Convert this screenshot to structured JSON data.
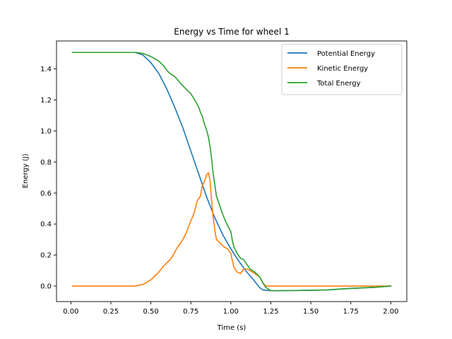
{
  "chart_data": {
    "type": "line",
    "title": "Energy vs Time for wheel 1",
    "xlabel": "Time (s)",
    "ylabel": "Energy (J)",
    "xlim": [
      -0.09,
      2.1
    ],
    "ylim": [
      -0.1,
      1.58
    ],
    "xticks": [
      0.0,
      0.25,
      0.5,
      0.75,
      1.0,
      1.25,
      1.5,
      1.75,
      2.0
    ],
    "xtick_labels": [
      "0.00",
      "0.25",
      "0.50",
      "0.75",
      "1.00",
      "1.25",
      "1.50",
      "1.75",
      "2.00"
    ],
    "yticks": [
      0.0,
      0.2,
      0.4,
      0.6,
      0.8,
      1.0,
      1.2,
      1.4
    ],
    "ytick_labels": [
      "0.0",
      "0.2",
      "0.4",
      "0.6",
      "0.8",
      "1.0",
      "1.2",
      "1.4"
    ],
    "legend_position": "top-right",
    "grid": false,
    "series": [
      {
        "name": "Potential Energy",
        "color": "#1f77b4",
        "points": [
          [
            0.01,
            1.506
          ],
          [
            0.4,
            1.506
          ],
          [
            0.45,
            1.49
          ],
          [
            0.5,
            1.44
          ],
          [
            0.55,
            1.37
          ],
          [
            0.6,
            1.27
          ],
          [
            0.65,
            1.15
          ],
          [
            0.7,
            1.02
          ],
          [
            0.75,
            0.87
          ],
          [
            0.8,
            0.72
          ],
          [
            0.85,
            0.57
          ],
          [
            0.9,
            0.44
          ],
          [
            0.95,
            0.33
          ],
          [
            1.0,
            0.24
          ],
          [
            1.05,
            0.16
          ],
          [
            1.1,
            0.09
          ],
          [
            1.15,
            0.03
          ],
          [
            1.18,
            -0.01
          ],
          [
            1.2,
            -0.025
          ],
          [
            1.25,
            -0.03
          ],
          [
            1.3,
            -0.03
          ],
          [
            1.45,
            -0.028
          ],
          [
            1.6,
            -0.025
          ],
          [
            1.75,
            -0.015
          ],
          [
            1.9,
            -0.008
          ],
          [
            2.0,
            0.0
          ]
        ]
      },
      {
        "name": "Kinetic Energy",
        "color": "#ff7f0e",
        "points": [
          [
            0.01,
            0.0
          ],
          [
            0.4,
            0.0
          ],
          [
            0.45,
            0.01
          ],
          [
            0.5,
            0.04
          ],
          [
            0.55,
            0.09
          ],
          [
            0.58,
            0.13
          ],
          [
            0.62,
            0.17
          ],
          [
            0.64,
            0.2
          ],
          [
            0.66,
            0.24
          ],
          [
            0.7,
            0.3
          ],
          [
            0.72,
            0.34
          ],
          [
            0.75,
            0.42
          ],
          [
            0.77,
            0.47
          ],
          [
            0.79,
            0.55
          ],
          [
            0.81,
            0.58
          ],
          [
            0.82,
            0.64
          ],
          [
            0.84,
            0.69
          ],
          [
            0.85,
            0.72
          ],
          [
            0.86,
            0.73
          ],
          [
            0.87,
            0.68
          ],
          [
            0.88,
            0.55
          ],
          [
            0.89,
            0.44
          ],
          [
            0.9,
            0.36
          ],
          [
            0.91,
            0.3
          ],
          [
            0.93,
            0.28
          ],
          [
            0.95,
            0.26
          ],
          [
            0.96,
            0.25
          ],
          [
            0.98,
            0.24
          ],
          [
            1.0,
            0.21
          ],
          [
            1.01,
            0.16
          ],
          [
            1.02,
            0.12
          ],
          [
            1.04,
            0.09
          ],
          [
            1.06,
            0.08
          ],
          [
            1.08,
            0.11
          ],
          [
            1.1,
            0.11
          ],
          [
            1.12,
            0.1
          ],
          [
            1.15,
            0.08
          ],
          [
            1.18,
            0.06
          ],
          [
            1.2,
            0.02
          ],
          [
            1.22,
            0.0
          ],
          [
            1.5,
            0.0
          ],
          [
            2.0,
            0.0
          ]
        ]
      },
      {
        "name": "Total Energy",
        "color": "#2ca02c",
        "points": [
          [
            0.01,
            1.506
          ],
          [
            0.4,
            1.506
          ],
          [
            0.45,
            1.5
          ],
          [
            0.5,
            1.48
          ],
          [
            0.55,
            1.45
          ],
          [
            0.58,
            1.42
          ],
          [
            0.6,
            1.39
          ],
          [
            0.62,
            1.37
          ],
          [
            0.65,
            1.35
          ],
          [
            0.7,
            1.29
          ],
          [
            0.72,
            1.27
          ],
          [
            0.75,
            1.24
          ],
          [
            0.78,
            1.19
          ],
          [
            0.8,
            1.15
          ],
          [
            0.81,
            1.12
          ],
          [
            0.82,
            1.1
          ],
          [
            0.83,
            1.06
          ],
          [
            0.85,
            1.0
          ],
          [
            0.86,
            0.96
          ],
          [
            0.87,
            0.9
          ],
          [
            0.88,
            0.82
          ],
          [
            0.89,
            0.72
          ],
          [
            0.9,
            0.65
          ],
          [
            0.91,
            0.58
          ],
          [
            0.93,
            0.52
          ],
          [
            0.95,
            0.46
          ],
          [
            0.97,
            0.41
          ],
          [
            1.0,
            0.35
          ],
          [
            1.01,
            0.29
          ],
          [
            1.02,
            0.25
          ],
          [
            1.04,
            0.21
          ],
          [
            1.06,
            0.18
          ],
          [
            1.08,
            0.17
          ],
          [
            1.1,
            0.14
          ],
          [
            1.12,
            0.11
          ],
          [
            1.15,
            0.09
          ],
          [
            1.18,
            0.06
          ],
          [
            1.2,
            0.02
          ],
          [
            1.22,
            -0.01
          ],
          [
            1.25,
            -0.03
          ],
          [
            1.45,
            -0.028
          ],
          [
            1.6,
            -0.025
          ],
          [
            1.75,
            -0.015
          ],
          [
            1.9,
            -0.008
          ],
          [
            2.0,
            0.0
          ]
        ]
      }
    ]
  }
}
